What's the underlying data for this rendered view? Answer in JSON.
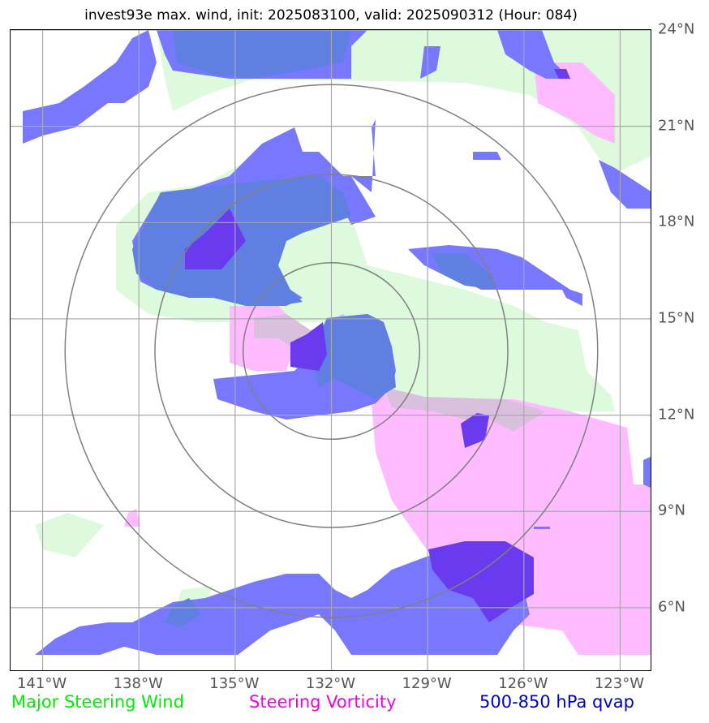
{
  "title": "invest93e max. wind, init: 2025083100, valid: 2025090312 (Hour: 084)",
  "legend": [
    {
      "label": "Major Steering Wind",
      "color": "#00ee00"
    },
    {
      "label": "Steering Vorticity",
      "color": "#ee00ee"
    },
    {
      "label": "500-850 hPa qvap",
      "color": "#0000cc"
    }
  ],
  "lat_labels": [
    {
      "value": 24,
      "text": "24°N"
    },
    {
      "value": 21,
      "text": "21°N"
    },
    {
      "value": 18,
      "text": "18°N"
    },
    {
      "value": 15,
      "text": "15°N"
    },
    {
      "value": 12,
      "text": "12°N"
    },
    {
      "value": 9,
      "text": "9°N"
    },
    {
      "value": 6,
      "text": "6°N"
    }
  ],
  "lon_labels": [
    {
      "value": -141,
      "text": "141°W"
    },
    {
      "value": -138,
      "text": "138°W"
    },
    {
      "value": -135,
      "text": "135°W"
    },
    {
      "value": -132,
      "text": "132°W"
    },
    {
      "value": -129,
      "text": "129°W"
    },
    {
      "value": -126,
      "text": "126°W"
    },
    {
      "value": -123,
      "text": "123°W"
    }
  ],
  "map": {
    "lon_range": [
      -142,
      -122
    ],
    "lat_range": [
      4,
      24
    ],
    "storm_center": {
      "lon": -132,
      "lat": 14
    },
    "range_rings_deg": [
      2.75,
      5.5,
      8.3
    ],
    "colors": {
      "steering_wind": "#ddfadd",
      "vorticity": "#ffbbff",
      "qvap": "#7777ff",
      "qvap_high": "#6a3aee",
      "overlap": "#5f80e0",
      "ring": "#808080",
      "grid": "#a8a8a8"
    }
  }
}
